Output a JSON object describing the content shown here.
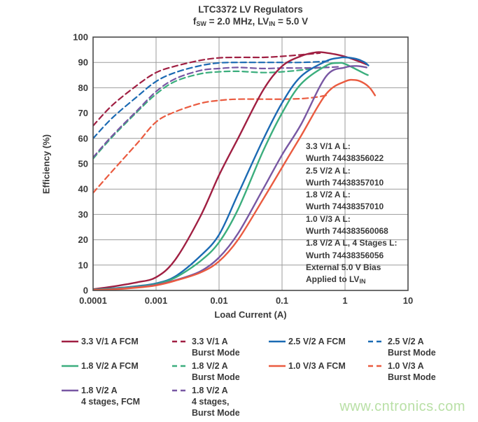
{
  "chart_data": {
    "type": "line",
    "title": "LTC3372 LV Regulators",
    "subtitle": {
      "pre": "f",
      "pre_sub": "SW",
      "mid": " = 2.0 MHz, LV",
      "mid_sub": "IN",
      "tail": " = 5.0 V"
    },
    "xlabel": "Load Current (A)",
    "ylabel": "Efficiency (%)",
    "x_scale": "log",
    "xlim": [
      0.0001,
      10
    ],
    "ylim": [
      0,
      100
    ],
    "x_ticks": [
      0.0001,
      0.001,
      0.01,
      0.1,
      1,
      10
    ],
    "x_tick_labels": [
      "0.0001",
      "0.001",
      "0.01",
      "0.1",
      "1",
      "10"
    ],
    "y_ticks": [
      0,
      10,
      20,
      30,
      40,
      50,
      60,
      70,
      80,
      90,
      100
    ],
    "grid": true,
    "legend_position": "bottom",
    "series": [
      {
        "name": "3.3 V/1 A Burst Mode",
        "color": "#a01f42",
        "dashed": true,
        "x": [
          0.0001,
          0.0002,
          0.0005,
          0.001,
          0.002,
          0.005,
          0.01,
          0.02,
          0.05,
          0.1,
          0.2,
          0.3,
          0.4
        ],
        "y": [
          65,
          73,
          81,
          86,
          88.5,
          90.8,
          91.8,
          92,
          92,
          92.4,
          93,
          93.4,
          93.7
        ]
      },
      {
        "name": "2.5 V/2 A Burst Mode",
        "color": "#1b6ab3",
        "dashed": true,
        "x": [
          0.0001,
          0.0002,
          0.0005,
          0.001,
          0.002,
          0.005,
          0.01,
          0.02,
          0.05,
          0.1,
          0.2,
          0.4,
          0.55
        ],
        "y": [
          60,
          68,
          76.5,
          82.5,
          86,
          88.7,
          89.8,
          90,
          90,
          90,
          90,
          90.3,
          90.6
        ]
      },
      {
        "name": "1.8 V/2 A Burst Mode",
        "color": "#3bae7d",
        "dashed": true,
        "x": [
          0.0001,
          0.0002,
          0.0005,
          0.001,
          0.002,
          0.005,
          0.01,
          0.02,
          0.05,
          0.1,
          0.2,
          0.35,
          0.5
        ],
        "y": [
          52,
          60.5,
          70.5,
          77.5,
          82.5,
          85.5,
          86.3,
          86.5,
          86,
          86.3,
          87,
          87.8,
          88.3
        ]
      },
      {
        "name": "1.8 V/2 A 4 stages, Burst Mode",
        "color": "#7857a3",
        "dashed": true,
        "x": [
          0.0001,
          0.0002,
          0.0005,
          0.001,
          0.002,
          0.005,
          0.01,
          0.02,
          0.05,
          0.1,
          0.2,
          0.5,
          0.8
        ],
        "y": [
          52.5,
          61,
          71,
          78.5,
          83.5,
          86.8,
          87.6,
          88,
          87.6,
          87.8,
          87.8,
          88,
          88.3
        ]
      },
      {
        "name": "1.0 V/3 A Burst Mode",
        "color": "#ea5b40",
        "dashed": true,
        "x": [
          0.0001,
          0.0002,
          0.0005,
          0.001,
          0.002,
          0.005,
          0.01,
          0.02,
          0.05,
          0.1,
          0.2,
          0.35,
          0.5
        ],
        "y": [
          38.5,
          47,
          58,
          66.5,
          70.5,
          73.8,
          75,
          75.5,
          75.5,
          75.5,
          75.7,
          76.3,
          77
        ]
      },
      {
        "name": "3.3 V/1 A FCM",
        "color": "#a01f42",
        "dashed": false,
        "x": [
          0.0001,
          0.0002,
          0.0005,
          0.001,
          0.002,
          0.005,
          0.01,
          0.02,
          0.05,
          0.1,
          0.2,
          0.35,
          0.5,
          0.7,
          1,
          1.5,
          2.2
        ],
        "y": [
          0.5,
          1.5,
          3.2,
          5.2,
          12,
          29,
          45.5,
          60,
          79,
          88.5,
          92.5,
          94,
          93.8,
          93.2,
          92.3,
          90.8,
          89.2
        ]
      },
      {
        "name": "2.5 V/2 A FCM",
        "color": "#1b6ab3",
        "dashed": false,
        "x": [
          0.0001,
          0.0002,
          0.0005,
          0.001,
          0.002,
          0.005,
          0.01,
          0.02,
          0.05,
          0.1,
          0.2,
          0.5,
          0.8,
          1,
          1.5,
          2,
          2.35
        ],
        "y": [
          0.3,
          0.8,
          1.7,
          2.8,
          5.5,
          13.5,
          22,
          38,
          59.5,
          74,
          84.5,
          90.5,
          91.8,
          92,
          91.4,
          90.2,
          88.8
        ]
      },
      {
        "name": "1.8 V/2 A FCM",
        "color": "#3bae7d",
        "dashed": false,
        "x": [
          0.0001,
          0.0002,
          0.0005,
          0.001,
          0.002,
          0.005,
          0.01,
          0.02,
          0.05,
          0.1,
          0.2,
          0.5,
          0.8,
          1,
          1.5,
          2,
          2.3
        ],
        "y": [
          0.3,
          0.7,
          1.5,
          2.5,
          5,
          11.5,
          19,
          32,
          55,
          70,
          81.5,
          88.7,
          89.8,
          89.4,
          87.3,
          85.7,
          85
        ]
      },
      {
        "name": "1.8 V/2 A 4 stages, FCM",
        "color": "#7857a3",
        "dashed": false,
        "x": [
          0.0001,
          0.0002,
          0.0005,
          0.001,
          0.002,
          0.005,
          0.01,
          0.02,
          0.05,
          0.1,
          0.2,
          0.5,
          1,
          1.5,
          2,
          2.2
        ],
        "y": [
          0.2,
          0.5,
          1.3,
          2.2,
          4,
          7.5,
          13,
          22.5,
          40,
          53.5,
          65.5,
          84.5,
          88,
          88.6,
          88.2,
          88
        ]
      },
      {
        "name": "1.0 V/3 A FCM",
        "color": "#ea5b40",
        "dashed": false,
        "x": [
          0.0001,
          0.0002,
          0.0005,
          0.001,
          0.002,
          0.005,
          0.01,
          0.02,
          0.05,
          0.1,
          0.2,
          0.5,
          1,
          1.5,
          2,
          2.5,
          3
        ],
        "y": [
          0.2,
          0.4,
          1.1,
          2,
          3.8,
          7,
          11.5,
          20,
          36,
          48.5,
          61,
          77.5,
          82.5,
          83,
          81.8,
          79.8,
          77
        ]
      }
    ],
    "annotation": {
      "lines": [
        "3.3 V/1 A L:",
        "Wurth 74438356022",
        "2.5 V/2 A L:",
        "Wurth 74438357010",
        "1.8 V/2 A L:",
        "Wurth 74438357010",
        "1.0 V/3 A L:",
        "Wurth 744383560068",
        "1.8 V/2 A L, 4 Stages L:",
        "Wurth 74438356056",
        "External 5.0 V Bias"
      ],
      "last_line_pre": "Applied to LV",
      "last_line_sub": "IN"
    }
  },
  "legend": {
    "items": [
      {
        "lines": [
          "3.3 V/1 A FCM"
        ],
        "color": "#a01f42",
        "dashed": false,
        "col": 0,
        "row": 0
      },
      {
        "lines": [
          "3.3 V/1 A",
          "Burst Mode"
        ],
        "color": "#a01f42",
        "dashed": true,
        "col": 1,
        "row": 0
      },
      {
        "lines": [
          "2.5 V/2 A FCM"
        ],
        "color": "#1b6ab3",
        "dashed": false,
        "col": 2,
        "row": 0
      },
      {
        "lines": [
          "2.5 V/2 A",
          "Burst Mode"
        ],
        "color": "#1b6ab3",
        "dashed": true,
        "col": 3,
        "row": 0
      },
      {
        "lines": [
          "1.8 V/2 A FCM"
        ],
        "color": "#3bae7d",
        "dashed": false,
        "col": 0,
        "row": 1
      },
      {
        "lines": [
          "1.8 V/2 A",
          "Burst Mode"
        ],
        "color": "#3bae7d",
        "dashed": true,
        "col": 1,
        "row": 1
      },
      {
        "lines": [
          "1.0 V/3 A FCM"
        ],
        "color": "#ea5b40",
        "dashed": false,
        "col": 2,
        "row": 1
      },
      {
        "lines": [
          "1.0 V/3 A",
          "Burst Mode"
        ],
        "color": "#ea5b40",
        "dashed": true,
        "col": 3,
        "row": 1
      },
      {
        "lines": [
          "1.8 V/2 A",
          "4 stages, FCM"
        ],
        "color": "#7857a3",
        "dashed": false,
        "col": 0,
        "row": 2
      },
      {
        "lines": [
          "1.8 V/2 A",
          "4 stages,",
          "Burst Mode"
        ],
        "color": "#7857a3",
        "dashed": true,
        "col": 1,
        "row": 2
      }
    ]
  },
  "watermark": {
    "text": "www.cntronics.com",
    "color": "#b9e0a6"
  },
  "colors": {
    "crimson": "#a01f42",
    "blue": "#1b6ab3",
    "green": "#3bae7d",
    "purple": "#7857a3",
    "orange": "#ea5b40",
    "grid": "#9b9b9b",
    "border": "#4a4a4a",
    "text": "#3a3a3a"
  }
}
